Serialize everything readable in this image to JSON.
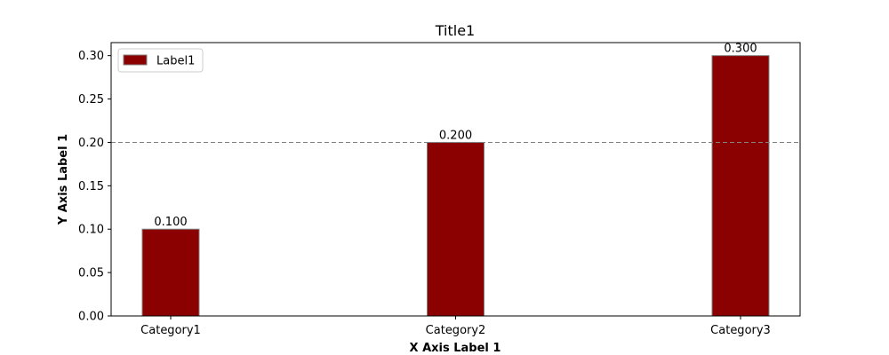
{
  "chart_data": {
    "type": "bar",
    "title": "Title1",
    "xlabel": "X Axis Label 1",
    "ylabel": "Y Axis Label 1",
    "categories": [
      "Category1",
      "Category2",
      "Category3"
    ],
    "series": [
      {
        "name": "Label1",
        "values": [
          0.1,
          0.2,
          0.3
        ],
        "color": "#8b0000",
        "edge_color": "#808080"
      }
    ],
    "data_labels": [
      "0.100",
      "0.200",
      "0.300"
    ],
    "ylim": [
      0,
      0.315
    ],
    "yticks": [
      0.0,
      0.05,
      0.1,
      0.15,
      0.2,
      0.25,
      0.3
    ],
    "ytick_labels": [
      "0.00",
      "0.05",
      "0.10",
      "0.15",
      "0.20",
      "0.25",
      "0.30"
    ],
    "reference_line": {
      "y": 0.2,
      "style": "dashed",
      "color": "#808080"
    },
    "legend_position": "upper-left",
    "grid": false
  }
}
